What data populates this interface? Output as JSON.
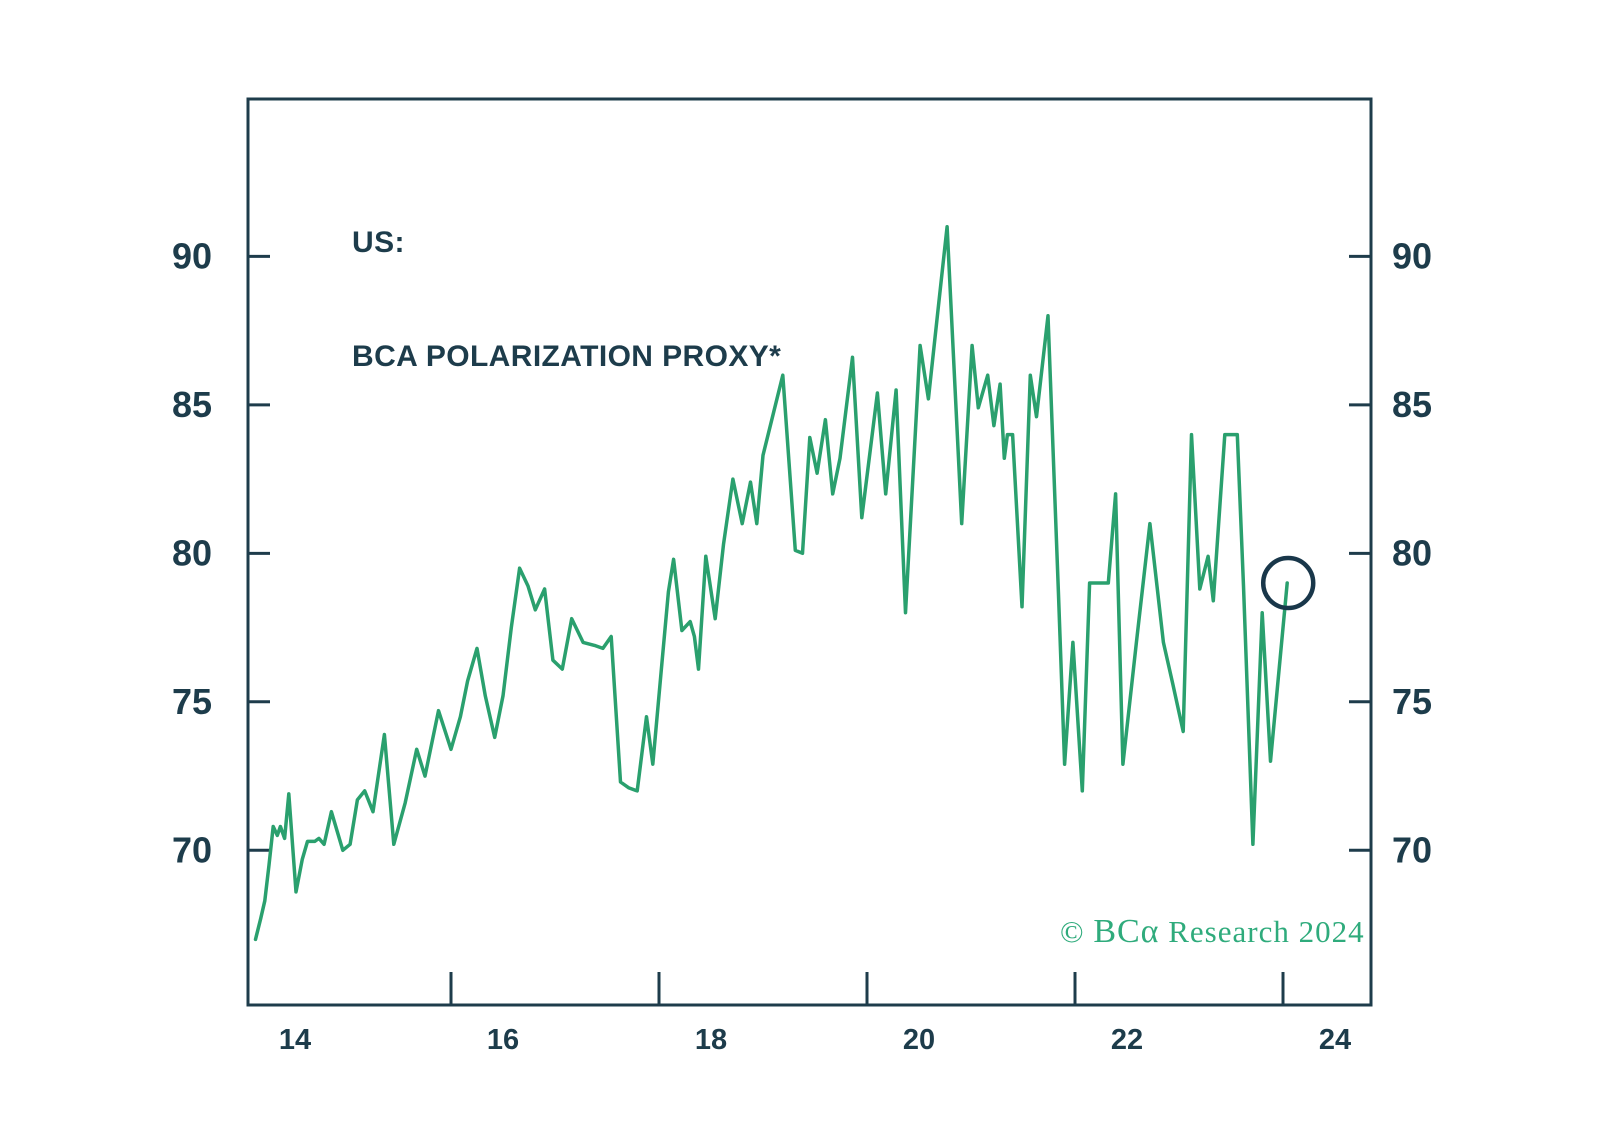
{
  "title": {
    "line1": "US:",
    "line2": "BCA POLARIZATION PROXY*"
  },
  "watermark": {
    "copyright": "© ",
    "brand": "BCα",
    "rest": " Research 2024"
  },
  "colors": {
    "background": "#ffffff",
    "line": "#2aa06e",
    "axis": "#1e3c4b",
    "title_text": "#1d3c4b",
    "watermark_text": "#2fab7c",
    "annotation_circle": "#19374a"
  },
  "chart_data": {
    "type": "line",
    "title": "US: BCA POLARIZATION PROXY*",
    "xlabel": "",
    "ylabel": "",
    "grid": false,
    "legend": "none",
    "x_axis": {
      "labels": [
        14,
        16,
        18,
        20,
        22,
        24
      ],
      "tick_marks": [
        15.5,
        17.5,
        19.5,
        21.5,
        23.5
      ],
      "range": [
        13.548,
        24.346
      ]
    },
    "y_axis": {
      "ticks": [
        70,
        75,
        80,
        85,
        90
      ],
      "range": [
        64.79,
        95.3
      ],
      "mirrored_right": true
    },
    "series": [
      {
        "name": "BCA Polarization Proxy",
        "points": [
          [
            13.62,
            67.0
          ],
          [
            13.67,
            67.7
          ],
          [
            13.71,
            68.3
          ],
          [
            13.75,
            69.5
          ],
          [
            13.79,
            70.8
          ],
          [
            13.83,
            70.5
          ],
          [
            13.86,
            70.8
          ],
          [
            13.9,
            70.4
          ],
          [
            13.94,
            71.9
          ],
          [
            14.01,
            68.6
          ],
          [
            14.07,
            69.7
          ],
          [
            14.12,
            70.3
          ],
          [
            14.19,
            70.3
          ],
          [
            14.23,
            70.4
          ],
          [
            14.28,
            70.2
          ],
          [
            14.35,
            71.3
          ],
          [
            14.46,
            70.0
          ],
          [
            14.53,
            70.2
          ],
          [
            14.6,
            71.7
          ],
          [
            14.67,
            72.0
          ],
          [
            14.75,
            71.3
          ],
          [
            14.86,
            73.9
          ],
          [
            14.95,
            70.2
          ],
          [
            15.06,
            71.6
          ],
          [
            15.17,
            73.4
          ],
          [
            15.25,
            72.5
          ],
          [
            15.38,
            74.7
          ],
          [
            15.5,
            73.4
          ],
          [
            15.59,
            74.5
          ],
          [
            15.66,
            75.7
          ],
          [
            15.75,
            76.8
          ],
          [
            15.83,
            75.2
          ],
          [
            15.92,
            73.8
          ],
          [
            16.0,
            75.2
          ],
          [
            16.08,
            77.5
          ],
          [
            16.16,
            79.5
          ],
          [
            16.24,
            78.9
          ],
          [
            16.31,
            78.1
          ],
          [
            16.4,
            78.8
          ],
          [
            16.48,
            76.4
          ],
          [
            16.57,
            76.1
          ],
          [
            16.66,
            77.8
          ],
          [
            16.77,
            77.0
          ],
          [
            16.88,
            76.9
          ],
          [
            16.96,
            76.8
          ],
          [
            17.04,
            77.2
          ],
          [
            17.13,
            72.3
          ],
          [
            17.21,
            72.1
          ],
          [
            17.29,
            72.0
          ],
          [
            17.38,
            74.5
          ],
          [
            17.44,
            72.9
          ],
          [
            17.52,
            76.0
          ],
          [
            17.59,
            78.7
          ],
          [
            17.64,
            79.8
          ],
          [
            17.72,
            77.4
          ],
          [
            17.8,
            77.7
          ],
          [
            17.84,
            77.2
          ],
          [
            17.88,
            76.1
          ],
          [
            17.95,
            79.9
          ],
          [
            18.04,
            77.8
          ],
          [
            18.12,
            80.3
          ],
          [
            18.21,
            82.5
          ],
          [
            18.3,
            81.0
          ],
          [
            18.38,
            82.4
          ],
          [
            18.44,
            81.0
          ],
          [
            18.5,
            83.3
          ],
          [
            18.69,
            86.0
          ],
          [
            18.81,
            80.1
          ],
          [
            18.88,
            80.0
          ],
          [
            18.95,
            83.9
          ],
          [
            19.02,
            82.7
          ],
          [
            19.1,
            84.5
          ],
          [
            19.17,
            82.0
          ],
          [
            19.24,
            83.2
          ],
          [
            19.36,
            86.6
          ],
          [
            19.45,
            81.2
          ],
          [
            19.6,
            85.4
          ],
          [
            19.68,
            82.0
          ],
          [
            19.78,
            85.5
          ],
          [
            19.87,
            78.0
          ],
          [
            19.94,
            82.5
          ],
          [
            20.01,
            87.0
          ],
          [
            20.09,
            85.2
          ],
          [
            20.18,
            88.1
          ],
          [
            20.27,
            91.0
          ],
          [
            20.34,
            86.0
          ],
          [
            20.41,
            81.0
          ],
          [
            20.51,
            87.0
          ],
          [
            20.57,
            84.9
          ],
          [
            20.66,
            86.0
          ],
          [
            20.72,
            84.3
          ],
          [
            20.78,
            85.7
          ],
          [
            20.82,
            83.2
          ],
          [
            20.85,
            84.0
          ],
          [
            20.9,
            84.0
          ],
          [
            20.99,
            78.2
          ],
          [
            21.07,
            86.0
          ],
          [
            21.13,
            84.6
          ],
          [
            21.24,
            88.0
          ],
          [
            21.34,
            78.7
          ],
          [
            21.4,
            72.9
          ],
          [
            21.48,
            77.0
          ],
          [
            21.57,
            72.0
          ],
          [
            21.64,
            79.0
          ],
          [
            21.74,
            79.0
          ],
          [
            21.82,
            79.0
          ],
          [
            21.89,
            82.0
          ],
          [
            21.96,
            72.9
          ],
          [
            22.09,
            77.0
          ],
          [
            22.22,
            81.0
          ],
          [
            22.35,
            77.0
          ],
          [
            22.44,
            75.6
          ],
          [
            22.54,
            74.0
          ],
          [
            22.62,
            84.0
          ],
          [
            22.7,
            78.8
          ],
          [
            22.78,
            79.9
          ],
          [
            22.83,
            78.4
          ],
          [
            22.94,
            84.0
          ],
          [
            23.06,
            84.0
          ],
          [
            23.12,
            78.9
          ],
          [
            23.21,
            70.2
          ],
          [
            23.3,
            78.0
          ],
          [
            23.38,
            73.0
          ],
          [
            23.54,
            79.0
          ]
        ]
      }
    ],
    "annotation": {
      "shape": "circle",
      "x": 23.55,
      "y": 79.0,
      "radius_px": 25
    }
  }
}
